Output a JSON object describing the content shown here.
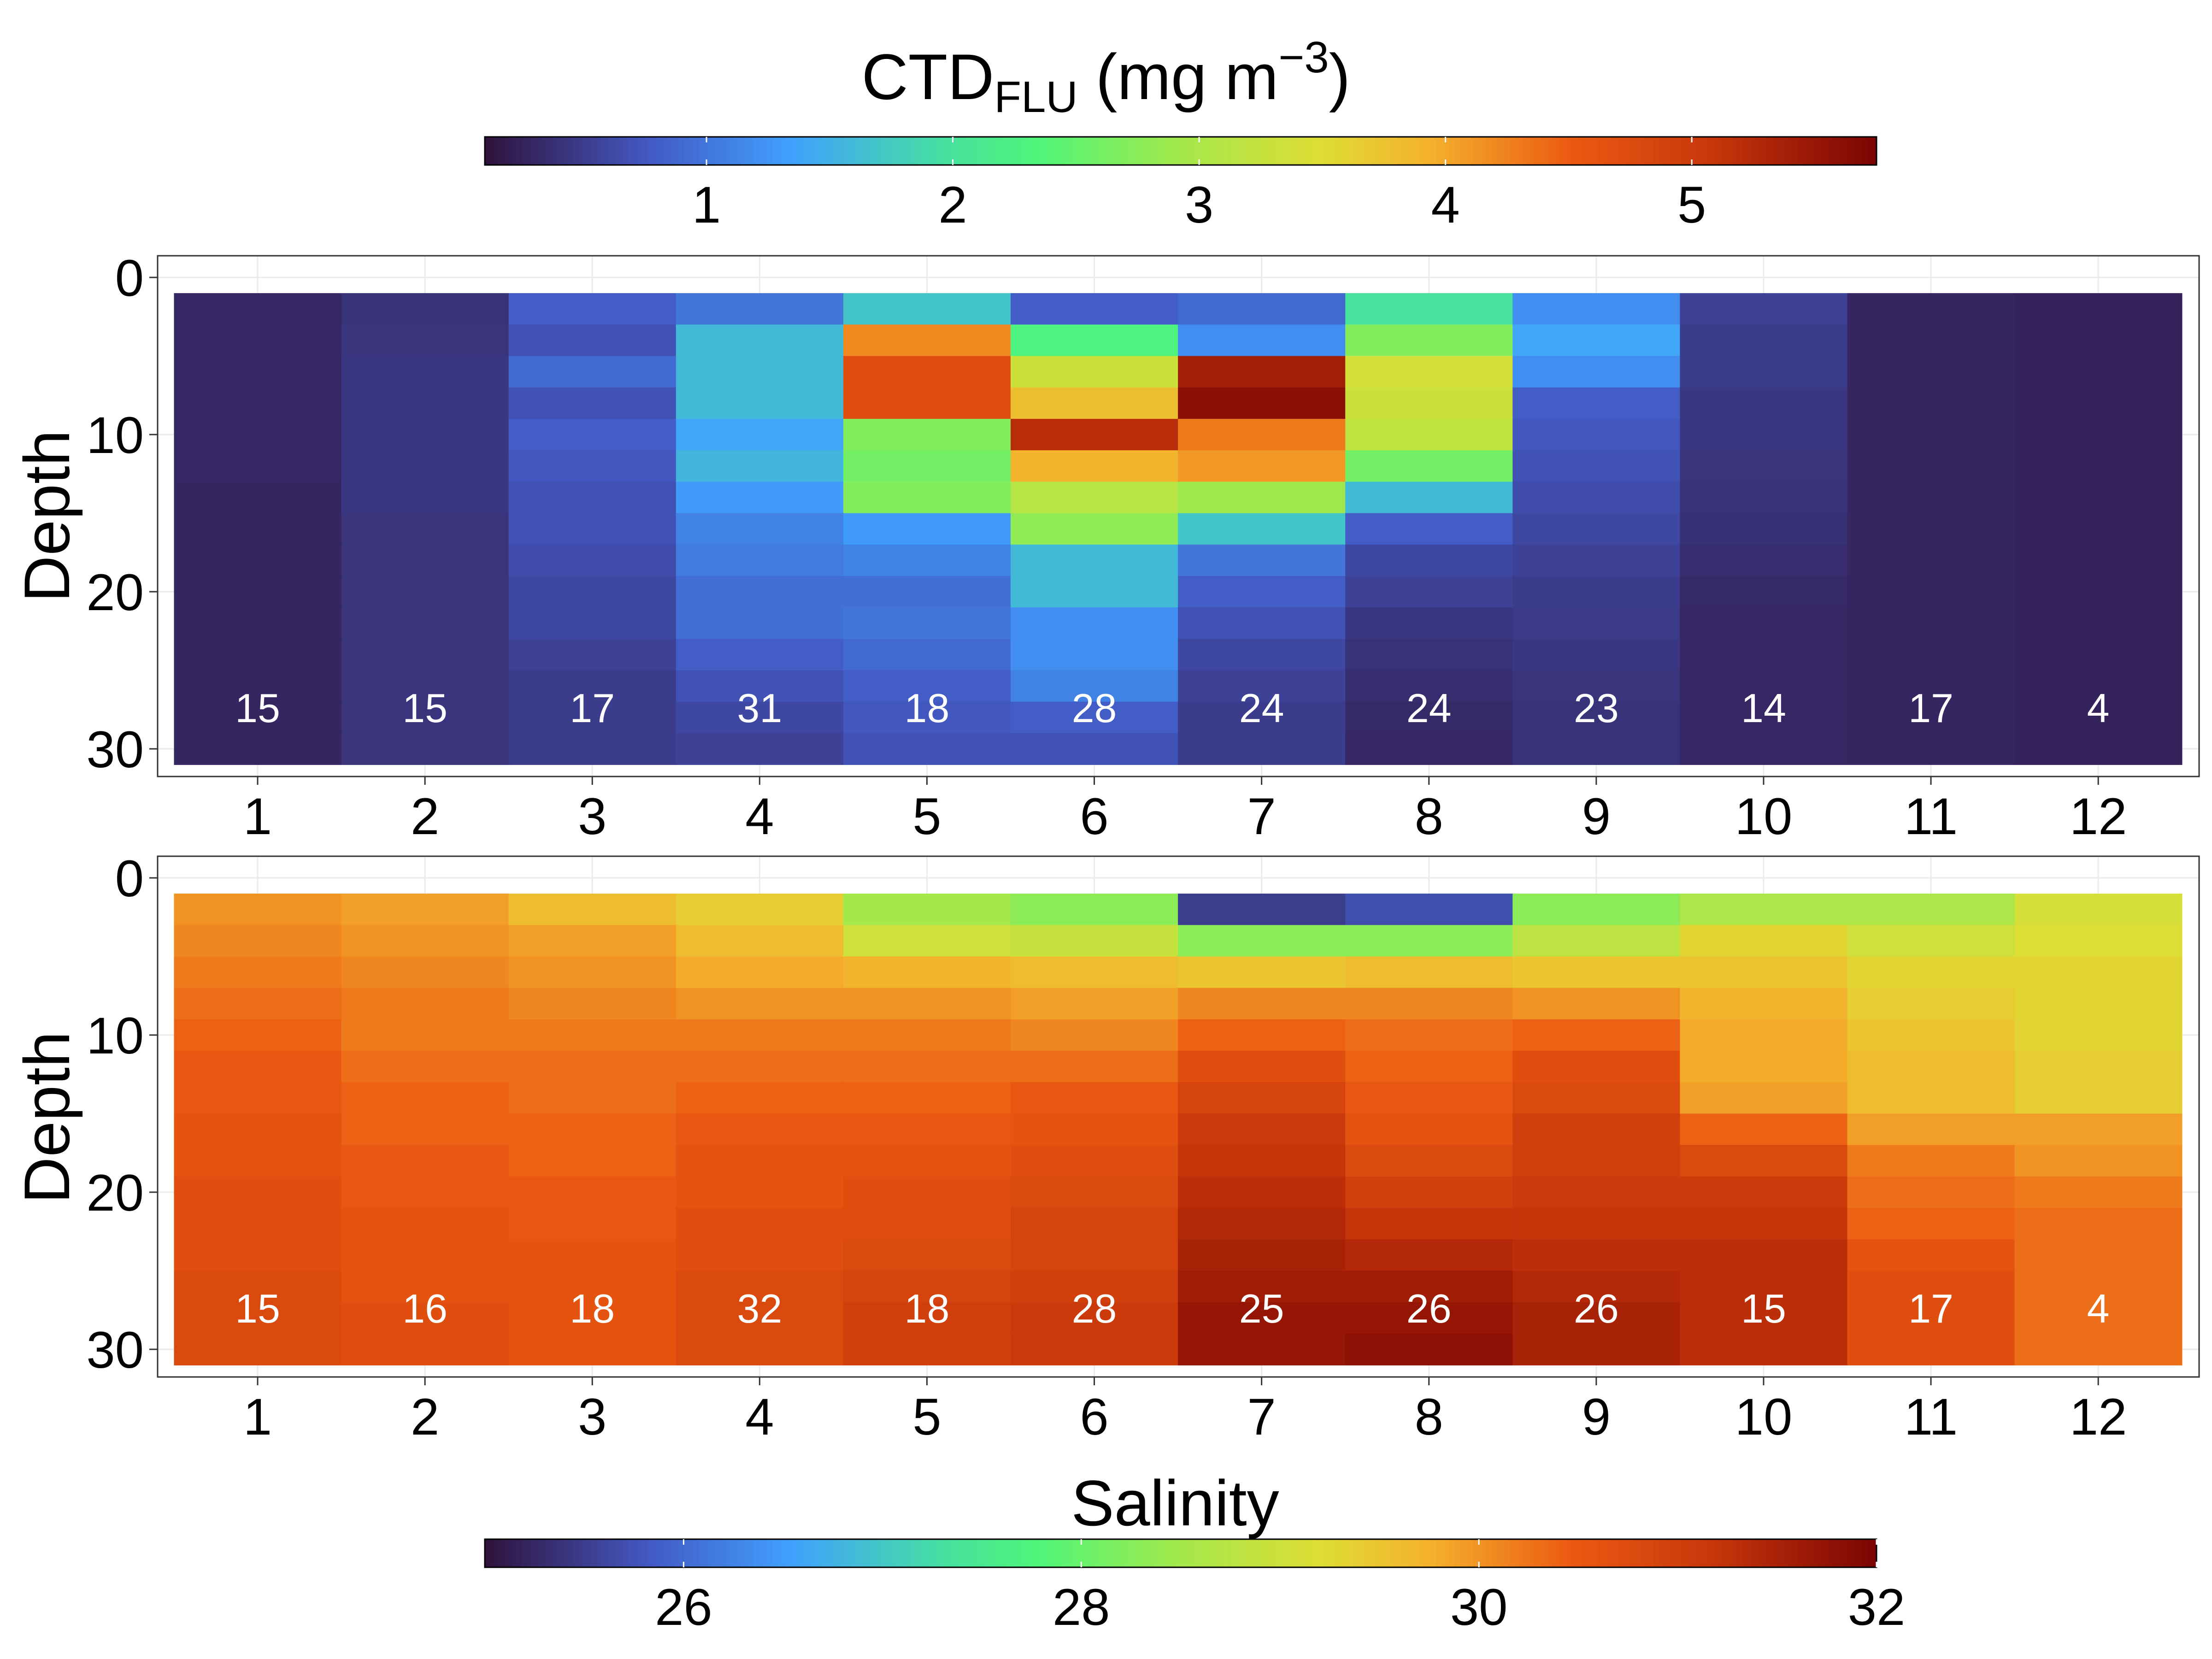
{
  "chart_data": [
    {
      "type": "heatmap",
      "ylabel": "Depth",
      "x_categories": [
        1,
        2,
        3,
        4,
        5,
        6,
        7,
        8,
        9,
        10,
        11,
        12
      ],
      "x_tick_labels": [
        "1",
        "2",
        "3",
        "4",
        "5",
        "6",
        "7",
        "8",
        "9",
        "10",
        "11",
        "12"
      ],
      "y_ticks": [
        0,
        10,
        20,
        30
      ],
      "y_tick_labels": [
        "0",
        "10",
        "20",
        "30"
      ],
      "ylim": [
        0,
        31
      ],
      "y_reversed": true,
      "grid": true,
      "colorbar": {
        "label_main": "CTD",
        "label_sub": "FLU",
        "label_rest": " (mg m",
        "label_sup": "−3",
        "label_end": ")",
        "placement": "top",
        "range": [
          0.1,
          5.75
        ],
        "ticks": [
          1,
          2,
          3,
          4,
          5
        ],
        "tick_labels": [
          "1",
          "2",
          "3",
          "4",
          "5"
        ]
      },
      "column_labels": [
        "15",
        "15",
        "17",
        "31",
        "18",
        "28",
        "24",
        "24",
        "23",
        "14",
        "17",
        "4"
      ],
      "depth_bins": [
        [
          1,
          3
        ],
        [
          3,
          5
        ],
        [
          5,
          7
        ],
        [
          7,
          9
        ],
        [
          9,
          11
        ],
        [
          11,
          13
        ],
        [
          13,
          15
        ],
        [
          15,
          17
        ],
        [
          17,
          19
        ],
        [
          19,
          21
        ],
        [
          21,
          23
        ],
        [
          23,
          25
        ],
        [
          25,
          27
        ],
        [
          27,
          29
        ],
        [
          29,
          31
        ]
      ],
      "values": [
        [
          0.3,
          0.3,
          0.3,
          0.3,
          0.3,
          0.3,
          0.28,
          0.28,
          0.28,
          0.28,
          0.28,
          0.28,
          0.28,
          0.28,
          0.28
        ],
        [
          0.4,
          0.42,
          0.45,
          0.45,
          0.45,
          0.45,
          0.45,
          0.42,
          0.42,
          0.42,
          0.42,
          0.42,
          0.42,
          0.42,
          0.42
        ],
        [
          0.8,
          0.7,
          0.9,
          0.7,
          0.8,
          0.75,
          0.7,
          0.7,
          0.65,
          0.6,
          0.6,
          0.55,
          0.5,
          0.5,
          0.5
        ],
        [
          1.0,
          1.6,
          1.6,
          1.6,
          1.4,
          1.55,
          1.3,
          1.1,
          1.05,
          0.95,
          0.95,
          0.8,
          0.7,
          0.6,
          0.55
        ],
        [
          1.7,
          4.2,
          4.7,
          4.7,
          2.7,
          2.6,
          2.7,
          1.3,
          1.1,
          0.95,
          1.0,
          0.9,
          0.8,
          0.75,
          0.7
        ],
        [
          0.8,
          2.3,
          3.3,
          3.8,
          5.2,
          3.9,
          3.1,
          2.8,
          1.6,
          1.6,
          1.2,
          1.2,
          1.1,
          0.8,
          0.7
        ],
        [
          0.9,
          1.2,
          5.4,
          5.6,
          4.3,
          4.1,
          2.9,
          1.7,
          1.0,
          0.8,
          0.7,
          0.6,
          0.55,
          0.5,
          0.5
        ],
        [
          2.0,
          2.7,
          3.4,
          3.3,
          3.2,
          2.6,
          1.6,
          0.8,
          0.6,
          0.55,
          0.45,
          0.4,
          0.35,
          0.32,
          0.3
        ],
        [
          1.2,
          1.4,
          1.2,
          0.8,
          0.75,
          0.7,
          0.65,
          0.6,
          0.55,
          0.5,
          0.48,
          0.45,
          0.42,
          0.4,
          0.4
        ],
        [
          0.55,
          0.5,
          0.5,
          0.45,
          0.45,
          0.42,
          0.4,
          0.38,
          0.35,
          0.32,
          0.3,
          0.3,
          0.3,
          0.3,
          0.3
        ],
        [
          0.28,
          0.28,
          0.28,
          0.28,
          0.28,
          0.28,
          0.28,
          0.28,
          0.28,
          0.28,
          0.28,
          0.28,
          0.28,
          0.28,
          0.28
        ],
        [
          0.25,
          0.25,
          0.25,
          0.25,
          0.25,
          0.25,
          0.25,
          0.25,
          0.25,
          0.25,
          0.25,
          0.25,
          0.25,
          0.25,
          0.25
        ]
      ]
    },
    {
      "type": "heatmap",
      "ylabel": "Depth",
      "x_categories": [
        1,
        2,
        3,
        4,
        5,
        6,
        7,
        8,
        9,
        10,
        11,
        12
      ],
      "x_tick_labels": [
        "1",
        "2",
        "3",
        "4",
        "5",
        "6",
        "7",
        "8",
        "9",
        "10",
        "11",
        "12"
      ],
      "y_ticks": [
        0,
        10,
        20,
        30
      ],
      "y_tick_labels": [
        "0",
        "10",
        "20",
        "30"
      ],
      "ylim": [
        0,
        31
      ],
      "y_reversed": true,
      "grid": true,
      "colorbar": {
        "label_main": "Salinity",
        "placement": "bottom",
        "range": [
          25.0,
          32.0
        ],
        "ticks": [
          26,
          28,
          30,
          32
        ],
        "tick_labels": [
          "26",
          "28",
          "30",
          "32"
        ]
      },
      "column_labels": [
        "15",
        "16",
        "18",
        "32",
        "18",
        "28",
        "25",
        "26",
        "26",
        "15",
        "17",
        "4"
      ],
      "depth_bins": [
        [
          1,
          3
        ],
        [
          3,
          5
        ],
        [
          5,
          7
        ],
        [
          7,
          9
        ],
        [
          9,
          11
        ],
        [
          11,
          13
        ],
        [
          13,
          15
        ],
        [
          15,
          17
        ],
        [
          17,
          19
        ],
        [
          19,
          21
        ],
        [
          21,
          23
        ],
        [
          23,
          25
        ],
        [
          25,
          27
        ],
        [
          27,
          29
        ],
        [
          29,
          31
        ]
      ],
      "values": [
        [
          30.0,
          30.1,
          30.2,
          30.3,
          30.4,
          30.5,
          30.5,
          30.6,
          30.6,
          30.7,
          30.7,
          30.7,
          30.8,
          30.8,
          30.8
        ],
        [
          29.9,
          30.0,
          30.1,
          30.2,
          30.2,
          30.3,
          30.4,
          30.4,
          30.5,
          30.5,
          30.6,
          30.6,
          30.6,
          30.7,
          30.7
        ],
        [
          29.6,
          29.9,
          30.0,
          30.1,
          30.2,
          30.3,
          30.3,
          30.4,
          30.4,
          30.5,
          30.5,
          30.6,
          30.6,
          30.6,
          30.6
        ],
        [
          29.4,
          29.6,
          29.8,
          30.0,
          30.2,
          30.3,
          30.4,
          30.5,
          30.6,
          30.6,
          30.7,
          30.7,
          30.8,
          30.8,
          30.8
        ],
        [
          28.5,
          29.0,
          29.7,
          30.0,
          30.2,
          30.3,
          30.4,
          30.5,
          30.6,
          30.7,
          30.7,
          30.8,
          30.9,
          31.0,
          31.0
        ],
        [
          28.3,
          28.9,
          29.6,
          29.9,
          30.1,
          30.3,
          30.5,
          30.6,
          30.7,
          30.8,
          30.9,
          30.9,
          31.0,
          31.1,
          31.1
        ],
        [
          25.5,
          28.3,
          29.5,
          30.1,
          30.4,
          30.7,
          30.9,
          31.1,
          31.2,
          31.3,
          31.4,
          31.5,
          31.6,
          31.7,
          31.7
        ],
        [
          25.7,
          28.3,
          29.6,
          30.1,
          30.3,
          30.4,
          30.5,
          30.6,
          30.8,
          31.0,
          31.2,
          31.4,
          31.6,
          31.7,
          31.8
        ],
        [
          28.3,
          28.8,
          29.5,
          30.0,
          30.4,
          30.7,
          30.8,
          31.0,
          31.0,
          31.1,
          31.2,
          31.3,
          31.4,
          31.5,
          31.5
        ],
        [
          28.6,
          29.3,
          29.5,
          29.7,
          29.8,
          29.8,
          29.9,
          30.4,
          30.8,
          31.1,
          31.2,
          31.3,
          31.3,
          31.3,
          31.3
        ],
        [
          28.6,
          29.0,
          29.3,
          29.4,
          29.5,
          29.6,
          29.6,
          29.9,
          30.2,
          30.3,
          30.4,
          30.6,
          30.7,
          30.7,
          30.7
        ],
        [
          29.1,
          29.2,
          29.3,
          29.3,
          29.3,
          29.4,
          29.4,
          29.9,
          30.0,
          30.2,
          30.3,
          30.3,
          30.3,
          30.3,
          30.3
        ]
      ]
    }
  ]
}
